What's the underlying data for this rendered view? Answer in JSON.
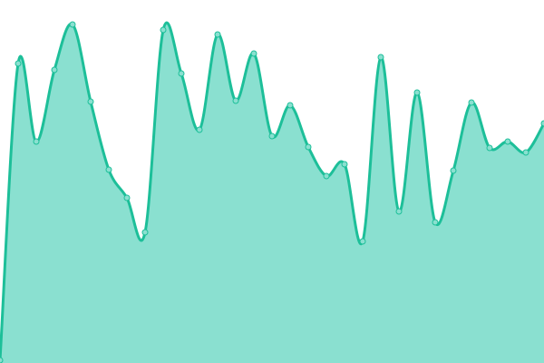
{
  "chart_data": {
    "type": "area",
    "title": "",
    "xlabel": "",
    "ylabel": "",
    "x": [
      0,
      1,
      2,
      3,
      4,
      5,
      6,
      7,
      8,
      9,
      10,
      11,
      12,
      13,
      14,
      15,
      16,
      17,
      18,
      19,
      20,
      21,
      22,
      23,
      24,
      25,
      26,
      27,
      28,
      29,
      30
    ],
    "values": [
      3,
      330,
      244,
      323,
      373,
      288,
      213,
      182,
      144,
      367,
      319,
      257,
      362,
      289,
      341,
      250,
      284,
      238,
      206,
      219,
      134,
      337,
      167,
      298,
      155,
      212,
      287,
      237,
      244,
      232,
      264
    ],
    "ylim": [
      0,
      400
    ],
    "grid": false,
    "axes_visible": false,
    "curve": "smooth",
    "markers": true,
    "colors": {
      "line": "#1dbf99",
      "fill": "#8ae0d0",
      "marker_fill": "#8ae0d0",
      "marker_stroke": "#1dbf99"
    }
  }
}
